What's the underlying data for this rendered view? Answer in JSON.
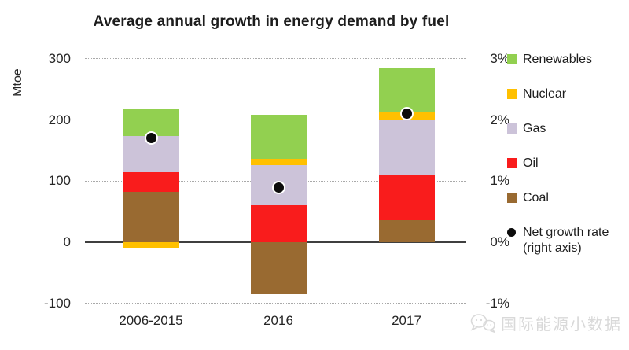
{
  "chart": {
    "title": "Average annual growth in energy demand by fuel",
    "left_axis": {
      "label": "Mtoe",
      "ticks": [
        300,
        200,
        100,
        0,
        -100
      ]
    },
    "right_axis": {
      "ticks": [
        "3%",
        "2%",
        "1%",
        "0%",
        "-1%"
      ],
      "tick_values_pct": [
        3,
        2,
        1,
        0,
        -1
      ]
    },
    "chart_data": {
      "type": "bar",
      "stacked": true,
      "title": "Average annual growth in energy demand by fuel",
      "ylabel": "Mtoe",
      "ylim": [
        -100,
        300
      ],
      "right_ylim_pct": [
        -1,
        3
      ],
      "grid": "horizontal-dotted",
      "legend_position": "right",
      "categories": [
        "2006-2015",
        "2016",
        "2017"
      ],
      "series": [
        {
          "name": "Coal",
          "color": "#996A31",
          "values": [
            83,
            -85,
            36
          ]
        },
        {
          "name": "Oil",
          "color": "#F91C1C",
          "values": [
            31,
            60,
            73
          ]
        },
        {
          "name": "Gas",
          "color": "#CCC3D9",
          "values": [
            60,
            66,
            92
          ]
        },
        {
          "name": "Nuclear",
          "color": "#FFC000",
          "values": [
            -9,
            11,
            11
          ]
        },
        {
          "name": "Renewables",
          "color": "#92D050",
          "values": [
            43,
            72,
            72
          ]
        }
      ],
      "point_series": {
        "name": "Net growth rate (right axis)",
        "axis": "right",
        "unit": "%",
        "values_pct": [
          1.7,
          0.9,
          2.1
        ],
        "color": "#0c0c0c"
      }
    },
    "legend": {
      "items": [
        {
          "label": "Renewables",
          "marker": "square",
          "color": "#92D050"
        },
        {
          "label": "Nuclear",
          "marker": "square",
          "color": "#FFC000"
        },
        {
          "label": "Gas",
          "marker": "square",
          "color": "#CCC3D9"
        },
        {
          "label": "Oil",
          "marker": "square",
          "color": "#F91C1C"
        },
        {
          "label": "Coal",
          "marker": "square",
          "color": "#996A31"
        },
        {
          "label": "Net growth rate",
          "label_line2": "(right axis)",
          "marker": "dot",
          "color": "#0c0c0c"
        }
      ]
    }
  },
  "watermark": {
    "text": "国际能源小数据",
    "color": "#D9D9D9"
  }
}
